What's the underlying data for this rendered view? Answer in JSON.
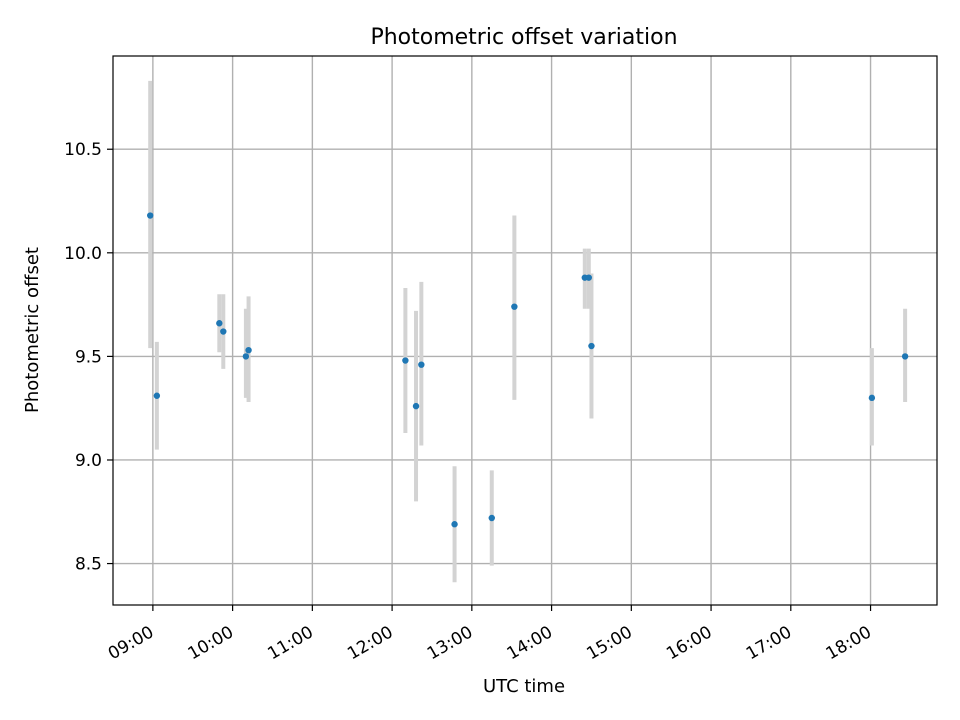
{
  "chart_data": {
    "type": "scatter",
    "title": "Photometric offset variation",
    "xlabel": "UTC time",
    "ylabel": "Photometric offset",
    "xlim": [
      "08:30",
      "18:50"
    ],
    "ylim": [
      8.3,
      10.95
    ],
    "grid": true,
    "x_ticks": [
      "09:00",
      "10:00",
      "11:00",
      "12:00",
      "13:00",
      "14:00",
      "15:00",
      "16:00",
      "17:00",
      "18:00"
    ],
    "y_ticks": [
      "8.5",
      "9.0",
      "9.5",
      "10.0",
      "10.5"
    ],
    "point_color": "#1f77b4",
    "errorbar_color": "#d3d3d3",
    "series": [
      {
        "points": [
          {
            "x": "08:58",
            "y": 10.18,
            "err_low": 9.54,
            "err_high": 10.83
          },
          {
            "x": "09:03",
            "y": 9.31,
            "err_low": 9.05,
            "err_high": 9.57
          },
          {
            "x": "09:50",
            "y": 9.66,
            "err_low": 9.52,
            "err_high": 9.8
          },
          {
            "x": "09:53",
            "y": 9.62,
            "err_low": 9.44,
            "err_high": 9.8
          },
          {
            "x": "10:10",
            "y": 9.5,
            "err_low": 9.3,
            "err_high": 9.73
          },
          {
            "x": "10:12",
            "y": 9.53,
            "err_low": 9.28,
            "err_high": 9.79
          },
          {
            "x": "12:10",
            "y": 9.48,
            "err_low": 9.13,
            "err_high": 9.83
          },
          {
            "x": "12:18",
            "y": 9.26,
            "err_low": 8.8,
            "err_high": 9.72
          },
          {
            "x": "12:22",
            "y": 9.46,
            "err_low": 9.07,
            "err_high": 9.86
          },
          {
            "x": "12:47",
            "y": 8.69,
            "err_low": 8.41,
            "err_high": 8.97
          },
          {
            "x": "13:15",
            "y": 8.72,
            "err_low": 8.49,
            "err_high": 8.95
          },
          {
            "x": "13:32",
            "y": 9.74,
            "err_low": 9.29,
            "err_high": 10.18
          },
          {
            "x": "14:25",
            "y": 9.88,
            "err_low": 9.73,
            "err_high": 10.02
          },
          {
            "x": "14:28",
            "y": 9.88,
            "err_low": 9.73,
            "err_high": 10.02
          },
          {
            "x": "14:30",
            "y": 9.55,
            "err_low": 9.2,
            "err_high": 9.9
          },
          {
            "x": "18:01",
            "y": 9.3,
            "err_low": 9.07,
            "err_high": 9.54
          },
          {
            "x": "18:26",
            "y": 9.5,
            "err_low": 9.28,
            "err_high": 9.73
          }
        ]
      }
    ]
  }
}
